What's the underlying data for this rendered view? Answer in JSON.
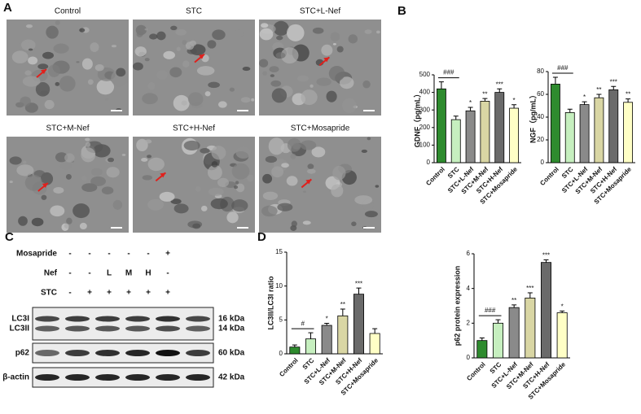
{
  "panel_a": {
    "label": "A",
    "images": [
      {
        "title": "Control"
      },
      {
        "title": "STC"
      },
      {
        "title": "STC+L-Nef"
      },
      {
        "title": "STC+M-Nef"
      },
      {
        "title": "STC+H-Nef"
      },
      {
        "title": "STC+Mosapride"
      }
    ]
  },
  "panel_b_label": "B",
  "panel_c": {
    "label": "C",
    "conditions": [
      {
        "name": "Mosapride",
        "lanes": [
          "-",
          "-",
          "-",
          "-",
          "-",
          "+"
        ]
      },
      {
        "name": "Nef",
        "lanes": [
          "-",
          "-",
          "L",
          "M",
          "H",
          "-"
        ]
      },
      {
        "name": "STC",
        "lanes": [
          "-",
          "+",
          "+",
          "+",
          "+",
          "+"
        ]
      }
    ],
    "blots": [
      {
        "labels": [
          "LC3I",
          "LC3II"
        ],
        "sizes": [
          "16 kDa",
          "14 kDa"
        ]
      },
      {
        "labels": [
          "p62"
        ],
        "sizes": [
          "60 kDa"
        ]
      },
      {
        "labels": [
          "β-actin"
        ],
        "sizes": [
          "42 kDa"
        ]
      }
    ]
  },
  "panel_d_label": "D",
  "chart_data": [
    {
      "type": "bar",
      "y_label": "GDNF（pg/mL）",
      "categories": [
        "Control",
        "STC",
        "STC+L-Nef",
        "STC+M-Nef",
        "STC+H-Nef",
        "STC+Mosapride"
      ],
      "values": [
        420,
        245,
        295,
        350,
        400,
        310
      ],
      "errors": [
        40,
        20,
        20,
        15,
        20,
        20
      ],
      "colors": [
        "#2e8b2e",
        "#c6efbf",
        "#8a8a8a",
        "#d9d6a4",
        "#6a6a6a",
        "#ffffc6"
      ],
      "annotations": [
        "###",
        null,
        "*",
        "**",
        "***",
        "*"
      ],
      "ylim": [
        0,
        500
      ],
      "yticks": [
        0,
        100,
        200,
        300,
        400,
        500
      ]
    },
    {
      "type": "bar",
      "y_label": "NGF（pg/mL）",
      "categories": [
        "Control",
        "STC",
        "STC+L-Nef",
        "STC+M-Nef",
        "STC+H-Nef",
        "STC+Mosapride"
      ],
      "values": [
        69,
        44,
        51,
        57,
        64,
        53
      ],
      "errors": [
        6,
        3,
        2.5,
        3,
        3,
        3
      ],
      "colors": [
        "#2e8b2e",
        "#c6efbf",
        "#8a8a8a",
        "#d9d6a4",
        "#6a6a6a",
        "#ffffc6"
      ],
      "annotations": [
        "###",
        null,
        "*",
        "**",
        "***",
        "**"
      ],
      "ylim": [
        0,
        80
      ],
      "yticks": [
        0,
        20,
        40,
        60,
        80
      ]
    },
    {
      "type": "bar",
      "y_label": "LC3II/LC3I ratio",
      "categories": [
        "Control",
        "STC",
        "STC+L-Nef",
        "STC+M-Nef",
        "STC+H-Nef",
        "STC+Mosapride"
      ],
      "values": [
        1.0,
        2.2,
        4.2,
        5.6,
        8.8,
        3.0
      ],
      "errors": [
        0.3,
        0.9,
        0.3,
        1.0,
        0.9,
        0.7
      ],
      "colors": [
        "#2e8b2e",
        "#c6efbf",
        "#8a8a8a",
        "#d9d6a4",
        "#6a6a6a",
        "#ffffc6"
      ],
      "annotations": [
        "#",
        null,
        "*",
        "**",
        "***",
        null
      ],
      "ylim": [
        0,
        15
      ],
      "yticks": [
        0,
        5,
        10,
        15
      ]
    },
    {
      "type": "bar",
      "y_label": "p62 protein expression",
      "categories": [
        "Control",
        "STC",
        "STC+L-Nef",
        "STC+M-Nef",
        "STC+H-Nef",
        "STC+Mosapride"
      ],
      "values": [
        1.0,
        2.0,
        2.9,
        3.45,
        5.5,
        2.6
      ],
      "errors": [
        0.15,
        0.2,
        0.15,
        0.3,
        0.15,
        0.1
      ],
      "colors": [
        "#2e8b2e",
        "#c6efbf",
        "#8a8a8a",
        "#d9d6a4",
        "#6a6a6a",
        "#ffffc6"
      ],
      "annotations": [
        "###",
        null,
        "**",
        "***",
        "***",
        "*"
      ],
      "ylim": [
        0,
        6
      ],
      "yticks": [
        0,
        2,
        4,
        6
      ]
    }
  ]
}
